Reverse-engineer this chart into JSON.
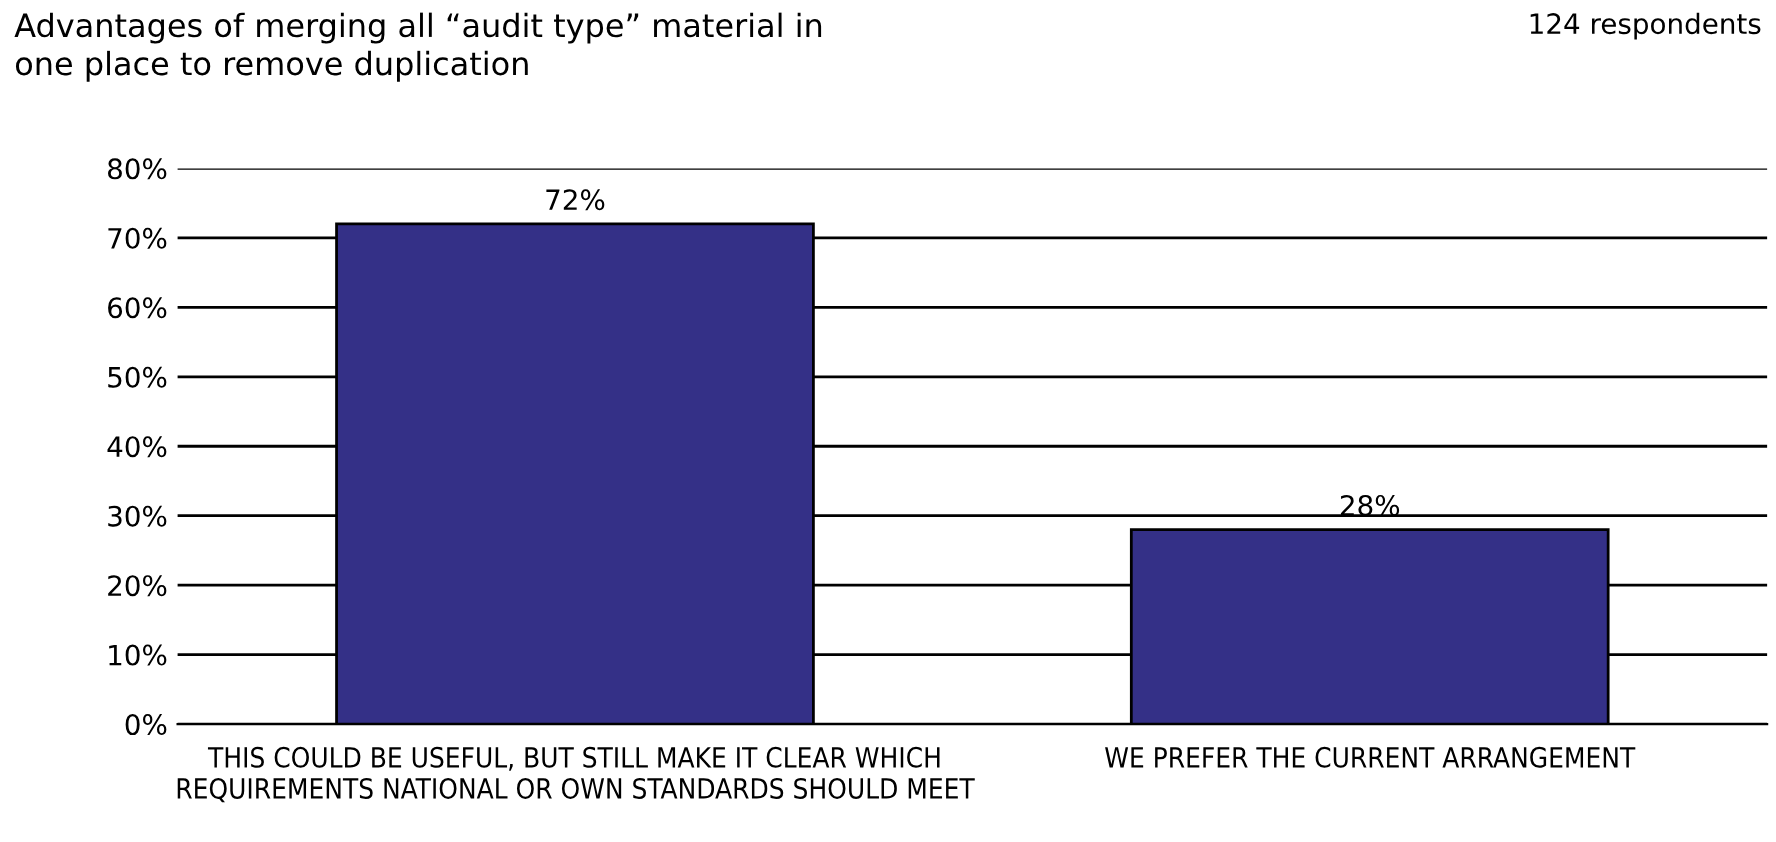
{
  "chart_data": {
    "type": "bar",
    "title": "Advantages of merging all “audit type” material in one place to remove duplication",
    "annotations": [
      "124 respondents"
    ],
    "categories": [
      "THIS COULD BE USEFUL, BUT STILL MAKE IT CLEAR WHICH REQUIREMENTS NATIONAL OR OWN STANDARDS SHOULD MEET",
      "WE PREFER THE CURRENT ARRANGEMENT"
    ],
    "values": [
      72,
      28
    ],
    "value_labels": [
      "72%",
      "28%"
    ],
    "color": "#343087",
    "ylim": [
      0,
      80
    ],
    "yticks": [
      {
        "value": 0,
        "label": "0%"
      },
      {
        "value": 10,
        "label": "10%"
      },
      {
        "value": 20,
        "label": "20%"
      },
      {
        "value": 30,
        "label": "30%"
      },
      {
        "value": 40,
        "label": "40%"
      },
      {
        "value": 50,
        "label": "50%"
      },
      {
        "value": 60,
        "label": "60%"
      },
      {
        "value": 70,
        "label": "70%"
      },
      {
        "value": 80,
        "label": "80%"
      }
    ],
    "grid": "y",
    "legend": false
  }
}
